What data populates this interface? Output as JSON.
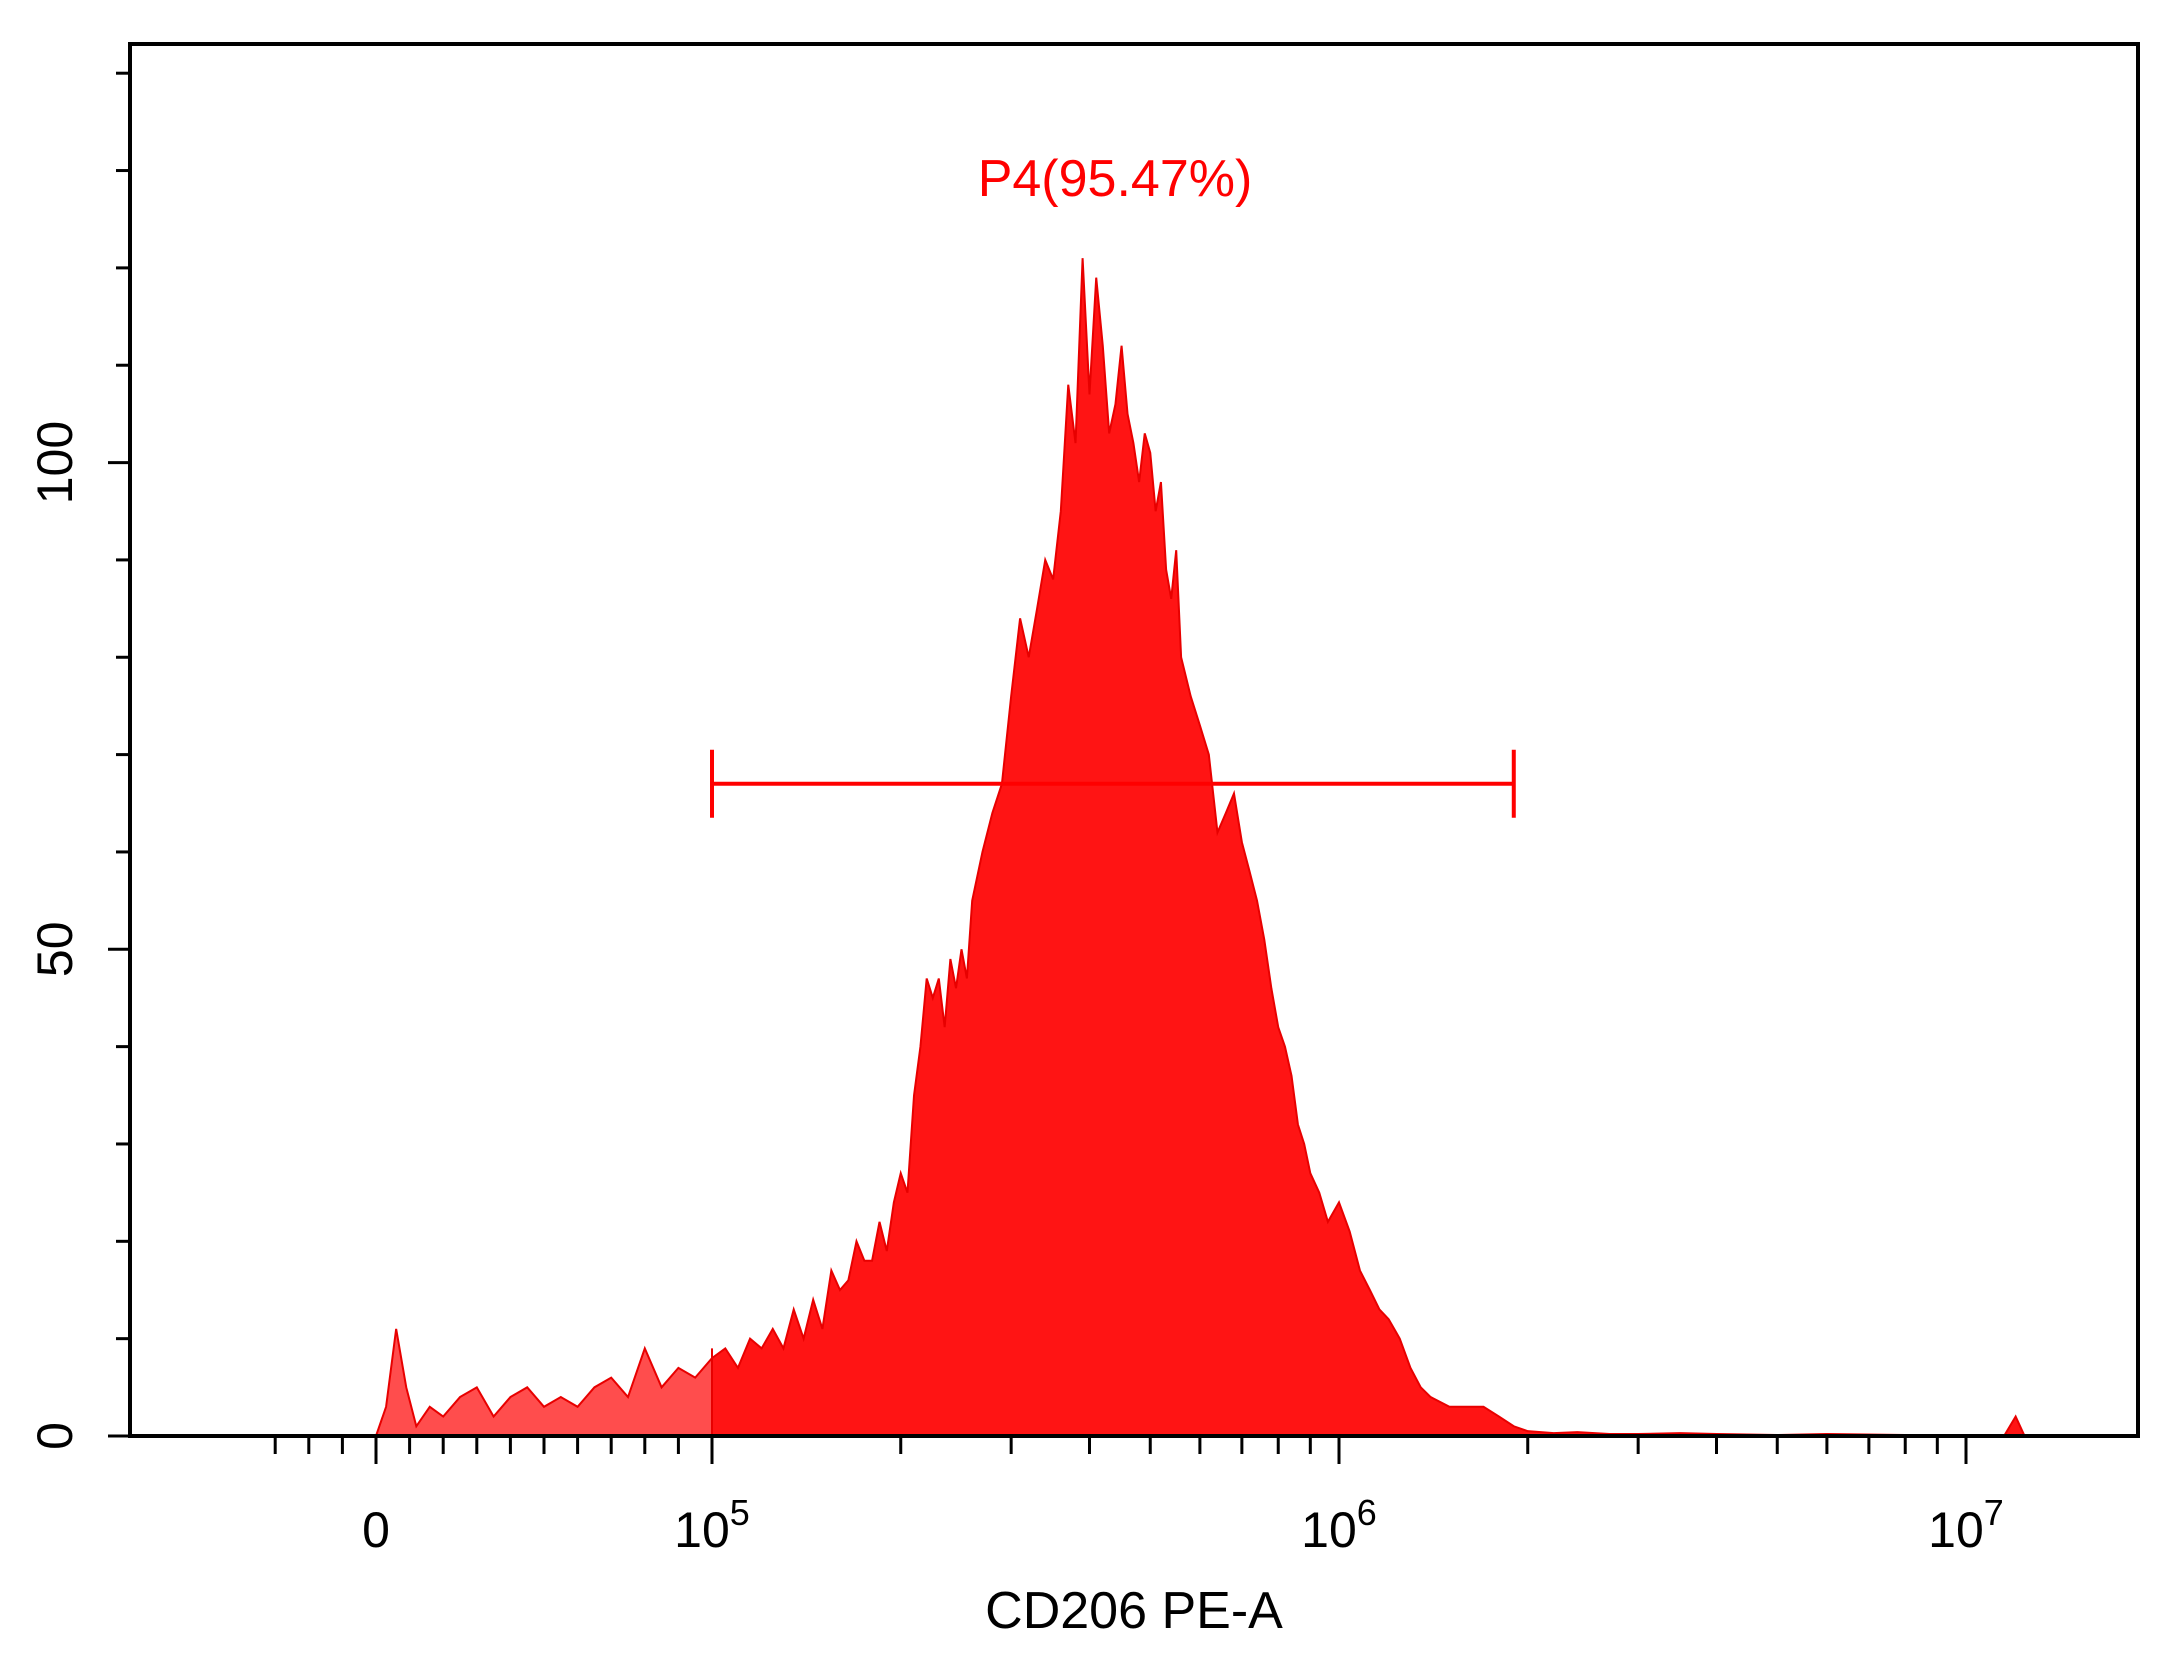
{
  "chart_data": {
    "type": "area",
    "title": "",
    "xlabel": "CD206 PE-A",
    "ylabel": "",
    "x_scale": "biexponential (linear near 0, log above 10^5)",
    "xlim": [
      -40000,
      12500000
    ],
    "ylim": [
      0,
      143
    ],
    "y_ticks": [
      {
        "value": 0,
        "label": "0"
      },
      {
        "value": 50,
        "label": "50"
      },
      {
        "value": 100,
        "label": "100"
      }
    ],
    "x_ticks": [
      {
        "value": 0,
        "label": "0",
        "base": "",
        "exp": ""
      },
      {
        "value": 100000,
        "label": "10^5",
        "base": "10",
        "exp": "5"
      },
      {
        "value": 1000000,
        "label": "10^6",
        "base": "10",
        "exp": "6"
      },
      {
        "value": 10000000,
        "label": "10^7",
        "base": "10",
        "exp": "7"
      }
    ],
    "series": [
      {
        "x": [
          0,
          3000,
          6000,
          9000,
          12000,
          16000,
          20000,
          25000,
          30000,
          35000,
          40000,
          45000,
          50000,
          55000,
          60000,
          65000,
          70000,
          75000,
          80000,
          85000,
          90000,
          95000,
          100000,
          105000,
          110000,
          115000,
          120000,
          125000,
          130000,
          135000,
          140000,
          145000,
          150000,
          155000,
          160000,
          165000,
          170000,
          175000,
          180000,
          185000,
          190000,
          195000,
          200000,
          205000,
          210000,
          215000,
          220000,
          225000,
          230000,
          235000,
          240000,
          245000,
          250000,
          255000,
          260000,
          270000,
          280000,
          290000,
          300000,
          310000,
          320000,
          330000,
          340000,
          350000,
          360000,
          370000,
          380000,
          390000,
          400000,
          410000,
          420000,
          430000,
          440000,
          450000,
          460000,
          470000,
          480000,
          490000,
          500000,
          510000,
          520000,
          530000,
          540000,
          550000,
          560000,
          580000,
          600000,
          620000,
          640000,
          660000,
          680000,
          700000,
          720000,
          740000,
          760000,
          780000,
          800000,
          820000,
          840000,
          860000,
          880000,
          900000,
          930000,
          960000,
          1000000,
          1040000,
          1080000,
          1120000,
          1160000,
          1200000,
          1250000,
          1300000,
          1350000,
          1400000,
          1500000,
          1600000,
          1700000,
          1800000,
          1900000,
          2000000,
          2200000,
          2400000,
          2700000,
          3000000,
          3500000,
          4000000,
          5000000,
          6000000,
          8000000,
          10000000,
          11500000,
          12000000,
          12400000
        ],
        "y": [
          0,
          3,
          11,
          5,
          1,
          3,
          2,
          4,
          5,
          2,
          4,
          5,
          3,
          4,
          3,
          5,
          6,
          4,
          9,
          5,
          7,
          6,
          8,
          9,
          7,
          10,
          9,
          11,
          9,
          13,
          10,
          14,
          11,
          17,
          15,
          16,
          20,
          18,
          18,
          22,
          19,
          24,
          27,
          25,
          35,
          40,
          47,
          45,
          47,
          42,
          49,
          46,
          50,
          47,
          55,
          60,
          64,
          67,
          76,
          84,
          80,
          85,
          90,
          88,
          95,
          108,
          102,
          121,
          107,
          119,
          112,
          103,
          106,
          112,
          105,
          102,
          98,
          103,
          101,
          95,
          98,
          89,
          86,
          91,
          80,
          76,
          73,
          70,
          62,
          64,
          66,
          61,
          58,
          55,
          51,
          46,
          42,
          40,
          37,
          32,
          30,
          27,
          25,
          22,
          24,
          21,
          17,
          15,
          13,
          12,
          10,
          7,
          5,
          4,
          3,
          3,
          3,
          2,
          1,
          0.5,
          0.3,
          0.4,
          0.2,
          0.2,
          0.3,
          0.2,
          0.1,
          0.2,
          0.1,
          0,
          0,
          2,
          0
        ]
      }
    ],
    "gates": [
      {
        "name": "P4",
        "percent": "95.47%",
        "label": "P4(95.47%)",
        "x_start": 100000,
        "x_end": 1900000,
        "y": 67
      }
    ],
    "colors": {
      "fill": "#ff1414",
      "fill_dark": "#e80000",
      "ungated_fill": "#ff4d4d",
      "gate": "#ff0000",
      "axis": "#000000"
    }
  }
}
